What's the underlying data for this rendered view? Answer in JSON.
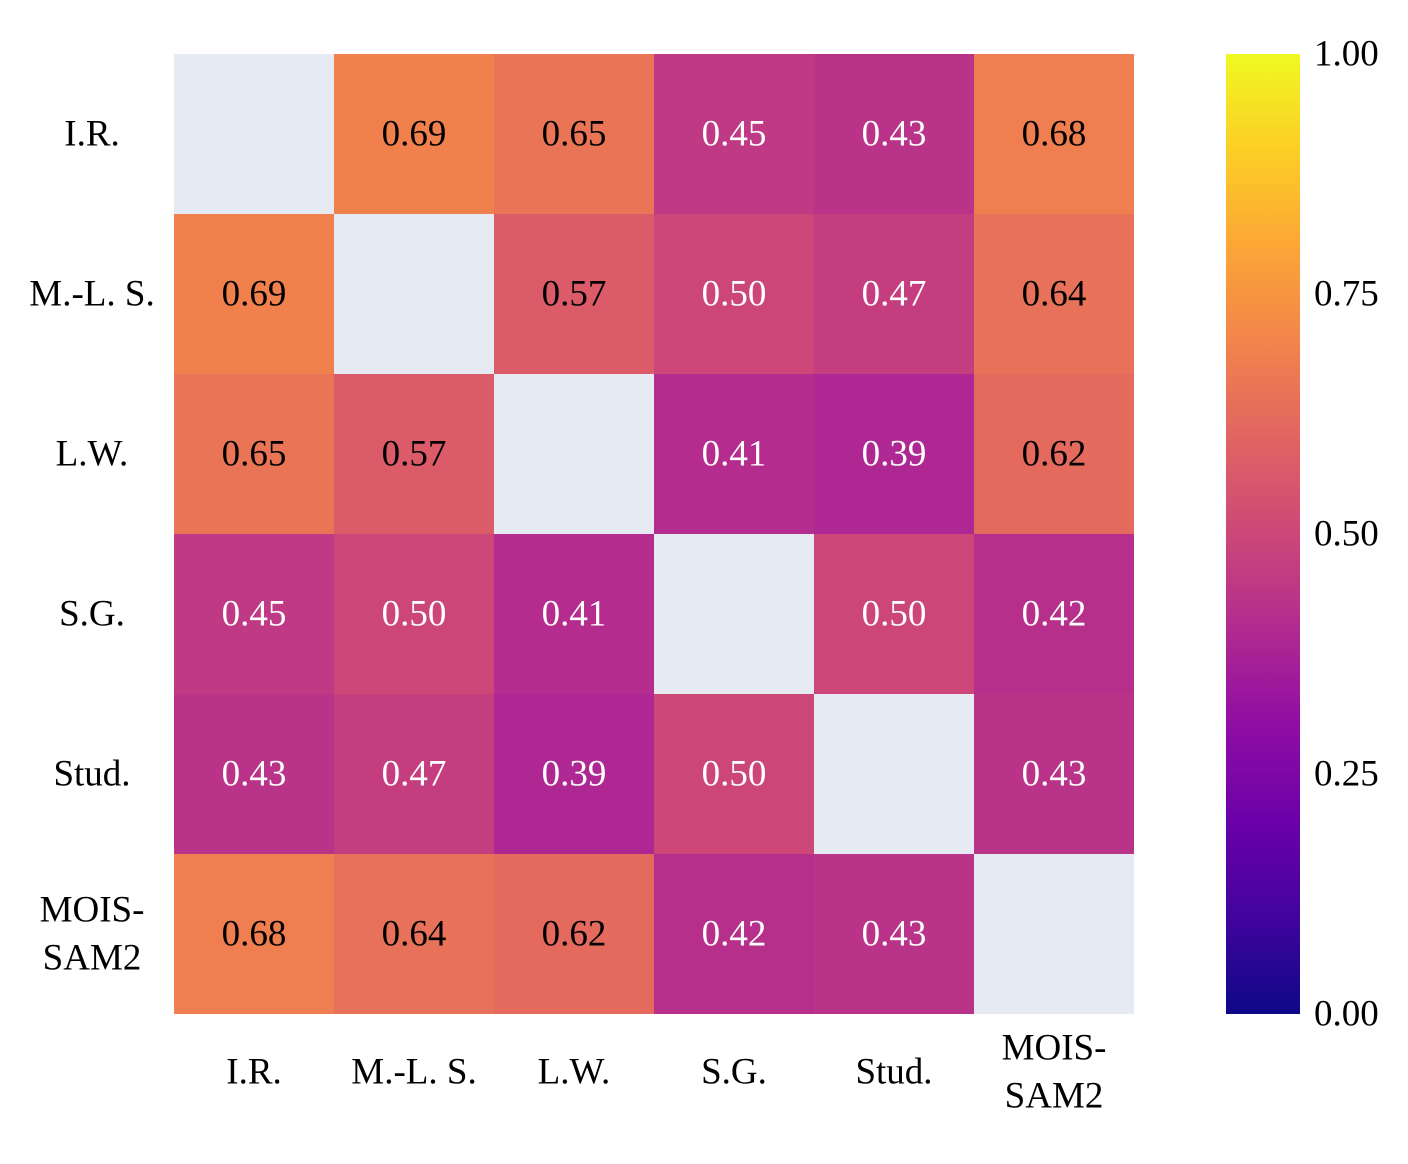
{
  "chart_data": {
    "type": "heatmap",
    "title": "",
    "row_labels": [
      [
        "I.R."
      ],
      [
        "M.-L. S."
      ],
      [
        "L.W."
      ],
      [
        "S.G."
      ],
      [
        "Stud."
      ],
      [
        "MOIS-",
        "SAM2"
      ]
    ],
    "col_labels": [
      [
        "I.R."
      ],
      [
        "M.-L. S."
      ],
      [
        "L.W."
      ],
      [
        "S.G."
      ],
      [
        "Stud."
      ],
      [
        "MOIS-",
        "SAM2"
      ]
    ],
    "values": [
      [
        null,
        0.69,
        0.65,
        0.45,
        0.43,
        0.68
      ],
      [
        0.69,
        null,
        0.57,
        0.5,
        0.47,
        0.64
      ],
      [
        0.65,
        0.57,
        null,
        0.41,
        0.39,
        0.62
      ],
      [
        0.45,
        0.5,
        0.41,
        null,
        0.5,
        0.42
      ],
      [
        0.43,
        0.47,
        0.39,
        0.5,
        null,
        0.43
      ],
      [
        0.68,
        0.64,
        0.62,
        0.42,
        0.43,
        null
      ]
    ],
    "value_format": "0.00",
    "masked_cell_color": "#e5eaf3",
    "colormap": "plasma",
    "colorbar": {
      "range": [
        0,
        1
      ],
      "ticks": [
        0,
        0.25,
        0.5,
        0.75,
        1.0
      ],
      "tick_labels": [
        "0.00",
        "0.25",
        "0.50",
        "0.75",
        "1.00"
      ]
    },
    "text_color_dark": "#000000",
    "text_color_light": "#ffffff",
    "text_threshold": 0.55
  }
}
